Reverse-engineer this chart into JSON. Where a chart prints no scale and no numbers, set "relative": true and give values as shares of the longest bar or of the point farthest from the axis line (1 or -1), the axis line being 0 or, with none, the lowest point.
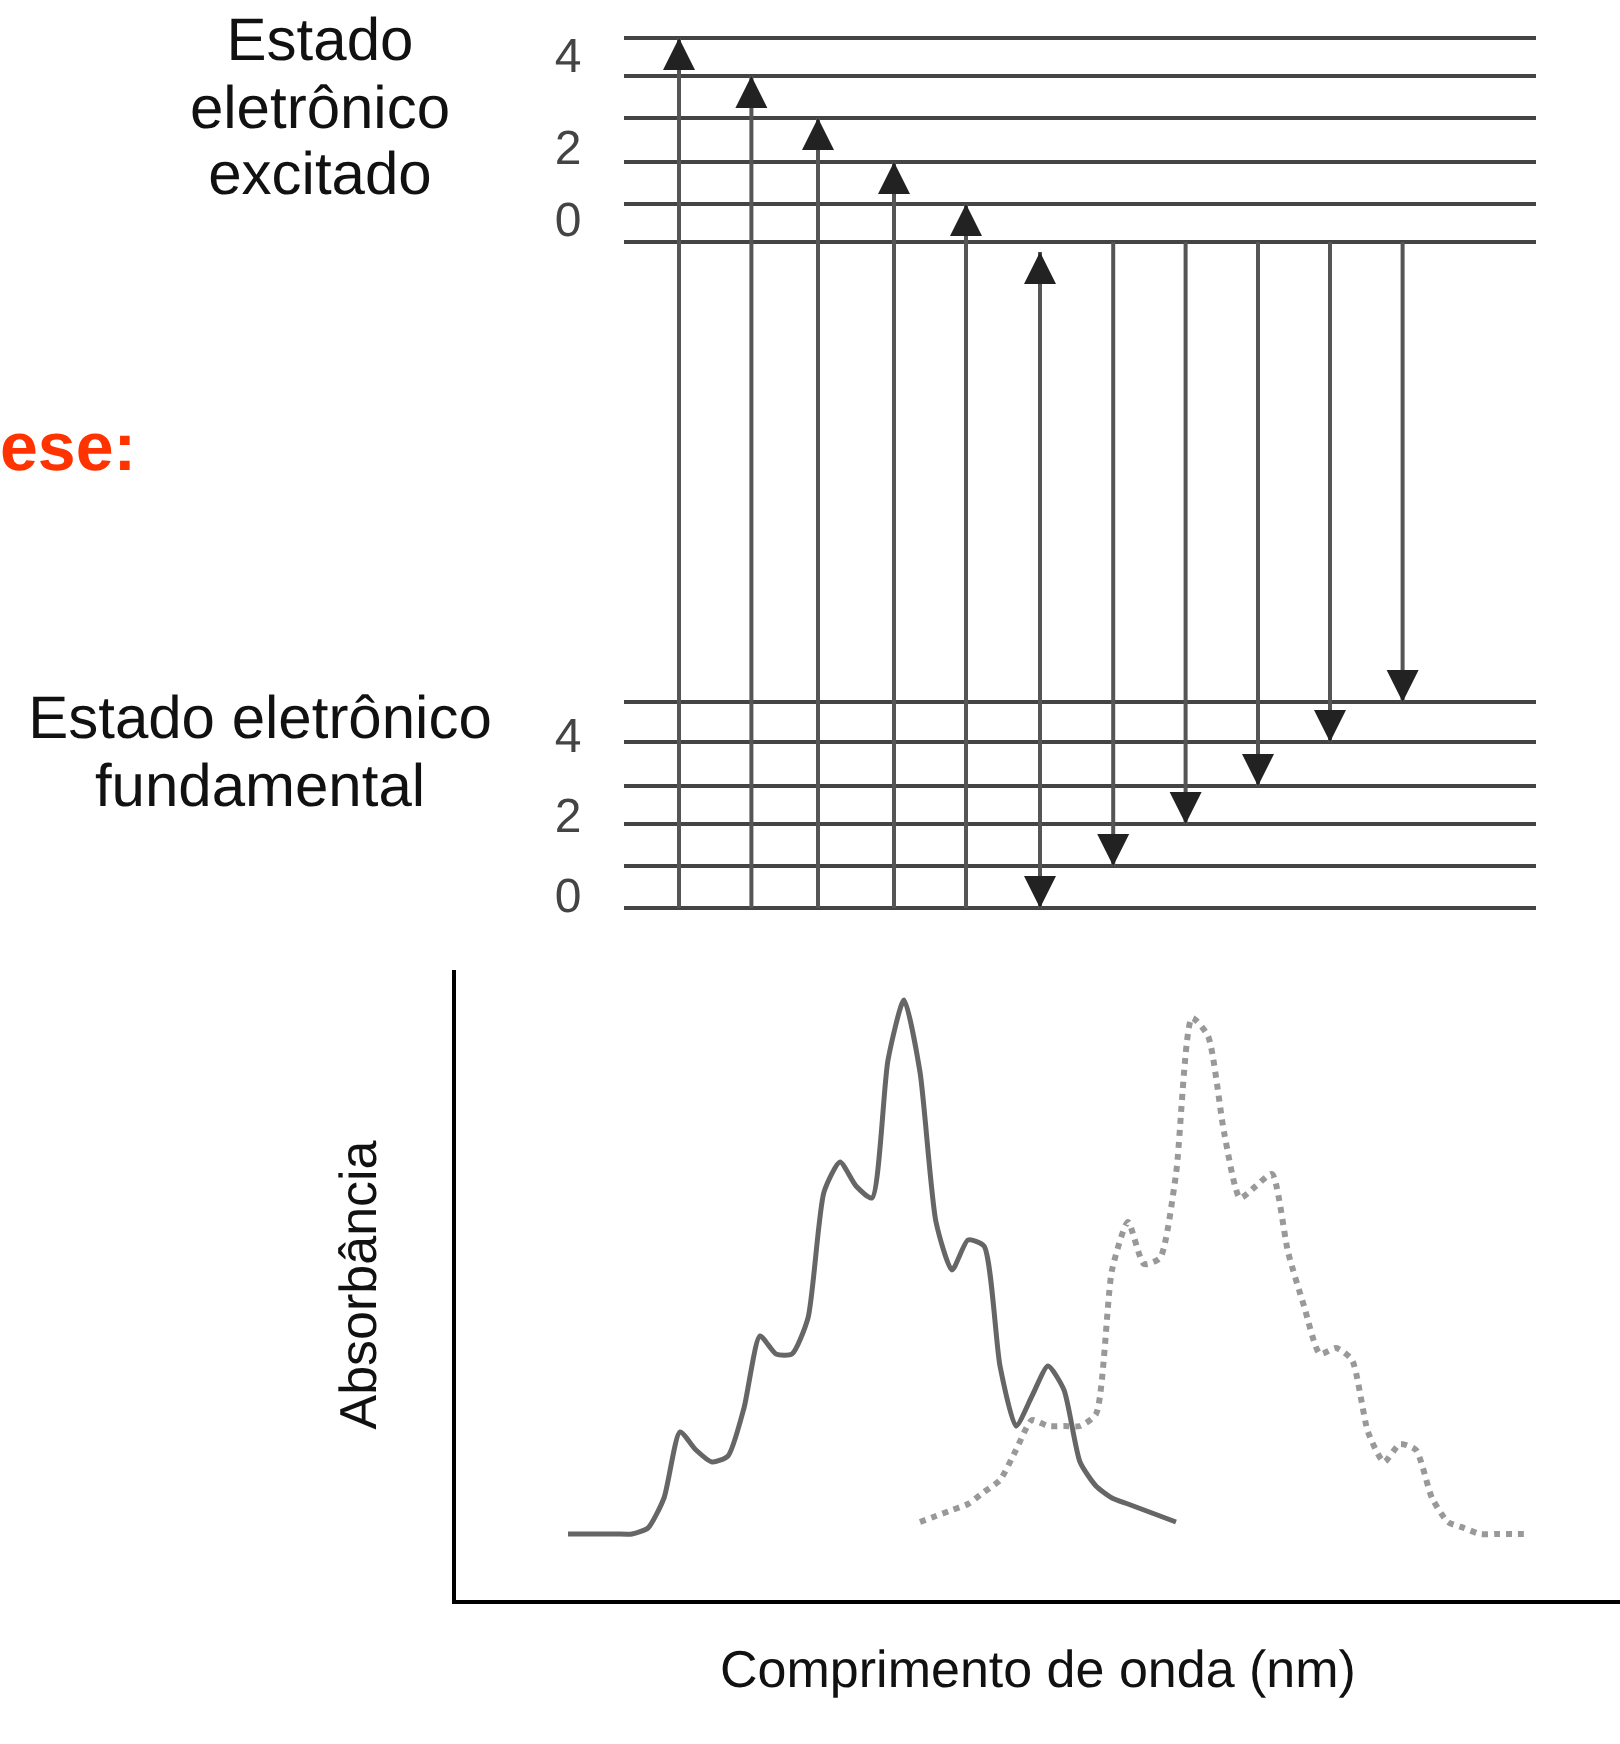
{
  "chart_data": {
    "type": "line",
    "relative": true,
    "xlabel": "Comprimento de onda (nm)",
    "ylabel": "Absorbância",
    "annotations": [
      "Estado eletrônico excitado",
      "4",
      "2",
      "0",
      "ese:",
      "Estado eletrônico fundamental",
      "4",
      "2",
      "0"
    ],
    "categories": [
      null,
      null,
      null,
      null,
      null,
      null,
      null,
      null,
      null,
      null,
      null,
      null,
      null,
      null,
      null,
      null,
      null,
      null,
      null,
      null,
      null,
      null,
      null,
      null,
      null,
      null,
      null,
      null,
      null,
      null,
      null,
      null,
      null,
      null,
      null,
      null,
      null,
      null,
      null,
      null,
      null,
      null,
      null,
      null,
      null,
      null,
      null,
      null,
      null,
      null,
      null,
      null,
      null,
      null,
      null,
      null,
      null,
      null,
      null,
      null,
      null
    ],
    "series": [
      {
        "color": "#666666",
        "line_style": "solid",
        "values": [
          0.11,
          0.11,
          0.11,
          0.11,
          0.11,
          0.12,
          0.17,
          0.28,
          0.25,
          0.23,
          0.24,
          0.32,
          0.44,
          0.41,
          0.41,
          0.47,
          0.68,
          0.73,
          0.69,
          0.67,
          0.9,
          1,
          0.88,
          0.63,
          0.55,
          0.6,
          0.59,
          0.39,
          0.29,
          0.34,
          0.39,
          0.35,
          0.23,
          0.19,
          0.17,
          0.16,
          0.15,
          0.14,
          0.13,
          null,
          null,
          null,
          null,
          null,
          null,
          null,
          null,
          null,
          null,
          null,
          null,
          null,
          null,
          null,
          null,
          null,
          null,
          null,
          null,
          null,
          null
        ]
      },
      {
        "color": "#999999",
        "line_style": "dotted",
        "values": [
          null,
          null,
          null,
          null,
          null,
          null,
          null,
          null,
          null,
          null,
          null,
          null,
          null,
          null,
          null,
          null,
          null,
          null,
          null,
          null,
          null,
          null,
          0.13,
          0.14,
          0.15,
          0.16,
          0.18,
          0.2,
          0.25,
          0.3,
          0.29,
          0.29,
          0.29,
          0.31,
          0.55,
          0.63,
          0.56,
          0.57,
          0.71,
          0.97,
          0.94,
          0.78,
          0.67,
          0.69,
          0.71,
          0.58,
          0.49,
          0.41,
          0.42,
          0.4,
          0.28,
          0.23,
          0.26,
          0.25,
          0.17,
          0.13,
          0.12,
          0.11,
          0.11,
          0.11,
          0.11
        ]
      }
    ]
  }
}
